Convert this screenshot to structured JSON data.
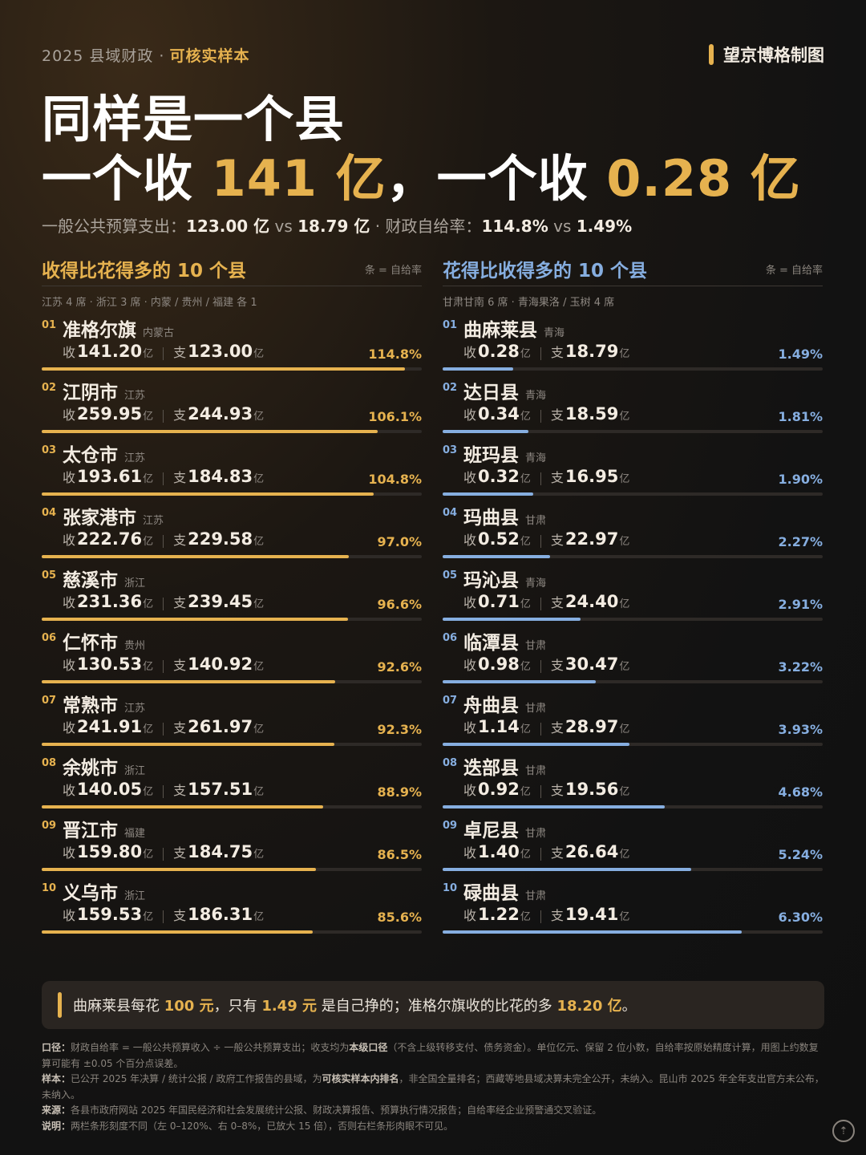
{
  "header": {
    "kicker": "2025 县域财政 ·",
    "kicker_highlight": "可核实样本",
    "brand": "望京博格制图"
  },
  "headline": {
    "line1": "同样是一个县",
    "prefix_a": "一个收 ",
    "num_a": "141 亿",
    "mid": "，一个收 ",
    "num_b": "0.28 亿"
  },
  "subline": {
    "label1": "一般公共预算支出：",
    "value1a": "123.00 亿",
    "vs1": " vs ",
    "value1b": "18.79 亿",
    "dot": " · ",
    "label2": "财政自给率：",
    "value2a": "114.8%",
    "vs2": " vs ",
    "value2b": "1.49%"
  },
  "chart_data": [
    {
      "type": "bar",
      "title": "收得比花得多的 10 个县",
      "note": "条 = 自给率",
      "subtitle": "江苏 4 席 · 浙江 3 席 · 内蒙 / 贵州 / 福建 各 1",
      "scale_max": 120,
      "rows": [
        {
          "rank": "01",
          "name": "准格尔旗",
          "province": "内蒙古",
          "income": "141.20",
          "expense": "123.00",
          "rate_label": "114.8%",
          "rate": 114.8
        },
        {
          "rank": "02",
          "name": "江阴市",
          "province": "江苏",
          "income": "259.95",
          "expense": "244.93",
          "rate_label": "106.1%",
          "rate": 106.1
        },
        {
          "rank": "03",
          "name": "太仓市",
          "province": "江苏",
          "income": "193.61",
          "expense": "184.83",
          "rate_label": "104.8%",
          "rate": 104.8
        },
        {
          "rank": "04",
          "name": "张家港市",
          "province": "江苏",
          "income": "222.76",
          "expense": "229.58",
          "rate_label": "97.0%",
          "rate": 97.0
        },
        {
          "rank": "05",
          "name": "慈溪市",
          "province": "浙江",
          "income": "231.36",
          "expense": "239.45",
          "rate_label": "96.6%",
          "rate": 96.6
        },
        {
          "rank": "06",
          "name": "仁怀市",
          "province": "贵州",
          "income": "130.53",
          "expense": "140.92",
          "rate_label": "92.6%",
          "rate": 92.6
        },
        {
          "rank": "07",
          "name": "常熟市",
          "province": "江苏",
          "income": "241.91",
          "expense": "261.97",
          "rate_label": "92.3%",
          "rate": 92.3
        },
        {
          "rank": "08",
          "name": "余姚市",
          "province": "浙江",
          "income": "140.05",
          "expense": "157.51",
          "rate_label": "88.9%",
          "rate": 88.9
        },
        {
          "rank": "09",
          "name": "晋江市",
          "province": "福建",
          "income": "159.80",
          "expense": "184.75",
          "rate_label": "86.5%",
          "rate": 86.5
        },
        {
          "rank": "10",
          "name": "义乌市",
          "province": "浙江",
          "income": "159.53",
          "expense": "186.31",
          "rate_label": "85.6%",
          "rate": 85.6
        }
      ]
    },
    {
      "type": "bar",
      "title": "花得比收得多的 10 个县",
      "note": "条 = 自给率",
      "subtitle": "甘肃甘南 6 席 · 青海果洛 / 玉树 4 席",
      "scale_max": 8,
      "rows": [
        {
          "rank": "01",
          "name": "曲麻莱县",
          "province": "青海",
          "income": "0.28",
          "expense": "18.79",
          "rate_label": "1.49%",
          "rate": 1.49
        },
        {
          "rank": "02",
          "name": "达日县",
          "province": "青海",
          "income": "0.34",
          "expense": "18.59",
          "rate_label": "1.81%",
          "rate": 1.81
        },
        {
          "rank": "03",
          "name": "班玛县",
          "province": "青海",
          "income": "0.32",
          "expense": "16.95",
          "rate_label": "1.90%",
          "rate": 1.9
        },
        {
          "rank": "04",
          "name": "玛曲县",
          "province": "甘肃",
          "income": "0.52",
          "expense": "22.97",
          "rate_label": "2.27%",
          "rate": 2.27
        },
        {
          "rank": "05",
          "name": "玛沁县",
          "province": "青海",
          "income": "0.71",
          "expense": "24.40",
          "rate_label": "2.91%",
          "rate": 2.91
        },
        {
          "rank": "06",
          "name": "临潭县",
          "province": "甘肃",
          "income": "0.98",
          "expense": "30.47",
          "rate_label": "3.22%",
          "rate": 3.22
        },
        {
          "rank": "07",
          "name": "舟曲县",
          "province": "甘肃",
          "income": "1.14",
          "expense": "28.97",
          "rate_label": "3.93%",
          "rate": 3.93
        },
        {
          "rank": "08",
          "name": "迭部县",
          "province": "甘肃",
          "income": "0.92",
          "expense": "19.56",
          "rate_label": "4.68%",
          "rate": 4.68
        },
        {
          "rank": "09",
          "name": "卓尼县",
          "province": "甘肃",
          "income": "1.40",
          "expense": "26.64",
          "rate_label": "5.24%",
          "rate": 5.24
        },
        {
          "rank": "10",
          "name": "碌曲县",
          "province": "甘肃",
          "income": "1.22",
          "expense": "19.41",
          "rate_label": "6.30%",
          "rate": 6.3
        }
      ]
    }
  ],
  "labels": {
    "income": "收",
    "expense": "支",
    "unit": "亿"
  },
  "callout": {
    "p1": "曲麻莱县每花 ",
    "h1": "100 元",
    "p2": "，只有 ",
    "h2": "1.49 元",
    "p3": " 是自己挣的；准格尔旗收的比花的多 ",
    "h3": "18.20 亿",
    "p4": "。"
  },
  "notes": {
    "k1": "口径：",
    "t1a": "财政自给率 = 一般公共预算收入 ÷ 一般公共预算支出；收支均为",
    "t1b": "本级口径",
    "t1c": "（不含上级转移支付、债务资金）。单位亿元、保留 2 位小数，自给率按原始精度计算，用图上约数复算可能有 ±0.05 个百分点误差。",
    "k2": "样本：",
    "t2a": "已公开 2025 年决算 / 统计公报 / 政府工作报告的县域，为",
    "t2b": "可核实样本内排名",
    "t2c": "，非全国全量排名；西藏等地县域决算未完全公开，未纳入。昆山市 2025 年全年支出官方未公布，未纳入。",
    "k3": "来源：",
    "t3": "各县市政府网站 2025 年国民经济和社会发展统计公报、财政决算报告、预算执行情况报告；自给率经企业预警通交叉验证。",
    "k4": "说明：",
    "t4": "两栏条形刻度不同（左 0–120%、右 0–8%，已放大 15 倍），否则右栏条形肉眼不可见。"
  },
  "colors": {
    "gold": "#e6b24f",
    "blue": "#86aee0",
    "background": "#121212"
  },
  "icons": {
    "corner": "share-icon"
  }
}
